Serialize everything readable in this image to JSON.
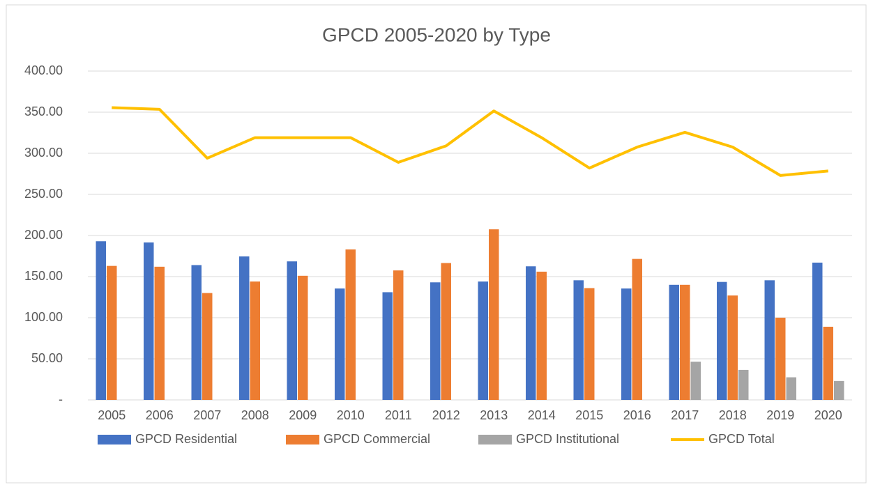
{
  "chart_data": {
    "type": "bar",
    "title": "GPCD 2005-2020 by Type",
    "categories": [
      "2005",
      "2006",
      "2007",
      "2008",
      "2009",
      "2010",
      "2011",
      "2012",
      "2013",
      "2014",
      "2015",
      "2016",
      "2017",
      "2018",
      "2019",
      "2020"
    ],
    "series": [
      {
        "name": "GPCD Residential",
        "color": "#4472c4",
        "type": "bar",
        "values": [
          193,
          191.5,
          164,
          174.5,
          168.5,
          135.5,
          131,
          143,
          144,
          162.5,
          145.5,
          135.5,
          140,
          143.5,
          145.5,
          167
        ]
      },
      {
        "name": "GPCD Commercial",
        "color": "#ed7d31",
        "type": "bar",
        "values": [
          163,
          162,
          130,
          144,
          151,
          183,
          157.5,
          166.5,
          207.5,
          156,
          136,
          171.5,
          140,
          127,
          100,
          89
        ]
      },
      {
        "name": "GPCD Institutional",
        "color": "#a5a5a5",
        "type": "bar",
        "values": [
          null,
          null,
          null,
          null,
          null,
          null,
          null,
          null,
          null,
          null,
          null,
          null,
          46.5,
          36.5,
          27.5,
          23
        ]
      },
      {
        "name": "GPCD Total",
        "color": "#ffc000",
        "type": "line",
        "values": [
          355.5,
          353.5,
          294,
          319,
          319,
          319,
          289,
          309,
          351.5,
          319,
          282,
          307.5,
          325.5,
          307.5,
          273,
          278.5
        ]
      }
    ],
    "ylim": [
      0,
      400
    ],
    "yticks": [
      {
        "value": 0,
        "label": "-"
      },
      {
        "value": 50,
        "label": "50.00"
      },
      {
        "value": 100,
        "label": "100.00"
      },
      {
        "value": 150,
        "label": "150.00"
      },
      {
        "value": 200,
        "label": "200.00"
      },
      {
        "value": 250,
        "label": "250.00"
      },
      {
        "value": 300,
        "label": "300.00"
      },
      {
        "value": 350,
        "label": "350.00"
      },
      {
        "value": 400,
        "label": "400.00"
      }
    ],
    "grid": true
  }
}
